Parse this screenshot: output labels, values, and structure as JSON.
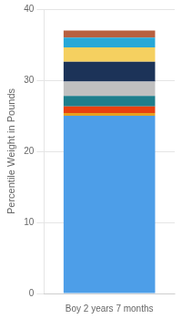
{
  "chart_data": {
    "type": "bar",
    "stacked": true,
    "categories": [
      "Boy 2 years 7 months"
    ],
    "series": [
      {
        "color": "#4D9EE8",
        "values": [
          25.0
        ]
      },
      {
        "color": "#E8A020",
        "values": [
          0.4
        ]
      },
      {
        "color": "#E84010",
        "values": [
          0.9
        ]
      },
      {
        "color": "#1E7E8C",
        "values": [
          1.5
        ]
      },
      {
        "color": "#C0C0C0",
        "values": [
          2.0
        ]
      },
      {
        "color": "#1C3358",
        "values": [
          2.8
        ]
      },
      {
        "color": "#F5D060",
        "values": [
          2.0
        ]
      },
      {
        "color": "#28A8D8",
        "values": [
          1.4
        ]
      },
      {
        "color": "#B86040",
        "values": [
          1.0
        ]
      }
    ],
    "ylabel": "Percentile Weight in Pounds",
    "ylim": [
      0,
      40
    ],
    "yticks": [
      0,
      10,
      20,
      30,
      40
    ],
    "grid": true
  }
}
